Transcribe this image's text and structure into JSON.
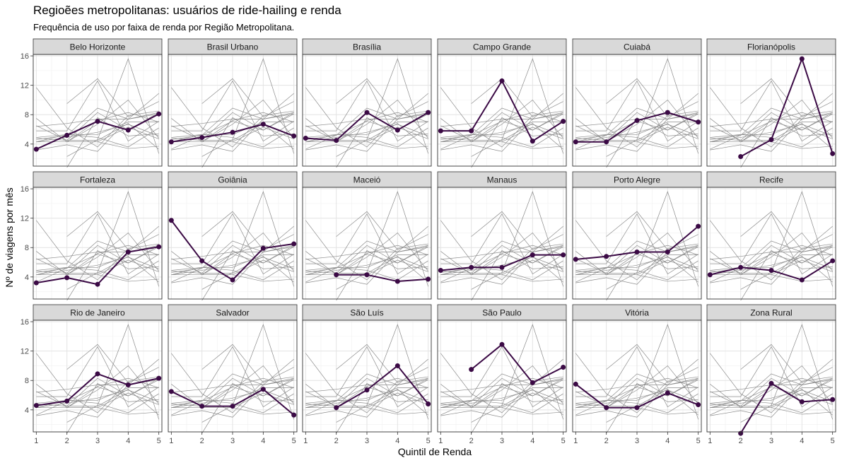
{
  "chart_data": {
    "type": "line",
    "title": "Regioẽes metropolitanas: usuários de ride-hailing e renda",
    "subtitle": "Frequência de uso por faixa de renda por Região Metropolitana.",
    "xlabel": "Quintil de Renda",
    "ylabel": "Nº de viagens por mês",
    "x": [
      1,
      2,
      3,
      4,
      5
    ],
    "xticks": [
      "1",
      "2",
      "3",
      "4",
      "5"
    ],
    "yticks": [
      "4",
      "8",
      "12",
      "16"
    ],
    "xlim": [
      0.9,
      5.1
    ],
    "ylim": [
      1.0,
      16.2
    ],
    "highlight_color": "#3b0a45",
    "background_color": "#8c8c8c",
    "facets": [
      {
        "name": "Belo Horizonte",
        "values": [
          3.3,
          5.2,
          7.1,
          5.9,
          8.1
        ]
      },
      {
        "name": "Brasil Urbano",
        "values": [
          4.3,
          4.9,
          5.6,
          6.7,
          5.1
        ]
      },
      {
        "name": "Brasília",
        "values": [
          4.8,
          4.5,
          8.3,
          5.9,
          8.3
        ]
      },
      {
        "name": "Campo Grande",
        "values": [
          5.8,
          5.8,
          12.6,
          4.4,
          7.1
        ]
      },
      {
        "name": "Cuiabá",
        "values": [
          4.3,
          4.3,
          7.2,
          8.3,
          7.0
        ]
      },
      {
        "name": "Florianópolis",
        "values": [
          null,
          2.3,
          4.6,
          15.6,
          2.7
        ]
      },
      {
        "name": "Fortaleza",
        "values": [
          3.2,
          3.9,
          3.0,
          7.4,
          8.1
        ]
      },
      {
        "name": "Goiânia",
        "values": [
          11.7,
          6.2,
          3.6,
          7.9,
          8.5
        ]
      },
      {
        "name": "Maceió",
        "values": [
          null,
          4.3,
          4.3,
          3.4,
          3.7
        ]
      },
      {
        "name": "Manaus",
        "values": [
          4.9,
          5.3,
          5.3,
          7.0,
          7.0
        ]
      },
      {
        "name": "Porto Alegre",
        "values": [
          6.4,
          6.8,
          7.4,
          7.4,
          10.9
        ]
      },
      {
        "name": "Recife",
        "values": [
          4.3,
          5.3,
          4.9,
          3.6,
          6.2
        ]
      },
      {
        "name": "Rio de Janeiro",
        "values": [
          4.6,
          5.2,
          8.9,
          7.4,
          8.3
        ]
      },
      {
        "name": "Salvador",
        "values": [
          6.5,
          4.5,
          4.5,
          6.8,
          3.3
        ]
      },
      {
        "name": "São Luís",
        "values": [
          null,
          4.3,
          6.7,
          10.0,
          4.8
        ]
      },
      {
        "name": "São Paulo",
        "values": [
          null,
          9.5,
          12.9,
          7.7,
          9.8
        ]
      },
      {
        "name": "Vitória",
        "values": [
          7.5,
          4.3,
          4.3,
          6.3,
          4.7
        ]
      },
      {
        "name": "Zona Rural",
        "values": [
          null,
          0.8,
          7.6,
          5.1,
          5.4
        ]
      }
    ]
  }
}
